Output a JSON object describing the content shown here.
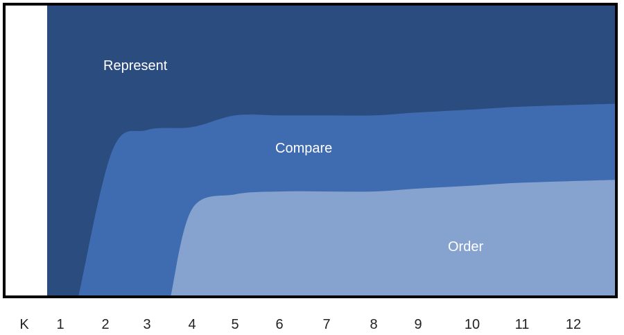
{
  "chart_data": {
    "type": "area",
    "stacking": "percent",
    "categories": [
      "K",
      "1",
      "2",
      "3",
      "4",
      "5",
      "6",
      "7",
      "8",
      "9",
      "10",
      "11",
      "12"
    ],
    "series": [
      {
        "name": "Order",
        "label": "Order",
        "color": "#86A2CF",
        "values": [
          0,
          0,
          0,
          0,
          30,
          35,
          36,
          36,
          36,
          37,
          38,
          39,
          40
        ]
      },
      {
        "name": "Compare",
        "label": "Compare",
        "color": "#3F6CB0",
        "values": [
          0,
          0,
          50,
          57,
          28,
          27,
          26,
          26,
          26,
          26,
          26,
          26,
          26
        ]
      },
      {
        "name": "Represent",
        "label": "Represent",
        "color": "#2B4C7E",
        "values": [
          0,
          100,
          50,
          43,
          42,
          38,
          38,
          38,
          38,
          37,
          36,
          35,
          34
        ]
      }
    ],
    "ylim": [
      0,
      100
    ],
    "grid": false,
    "legend": "none"
  }
}
